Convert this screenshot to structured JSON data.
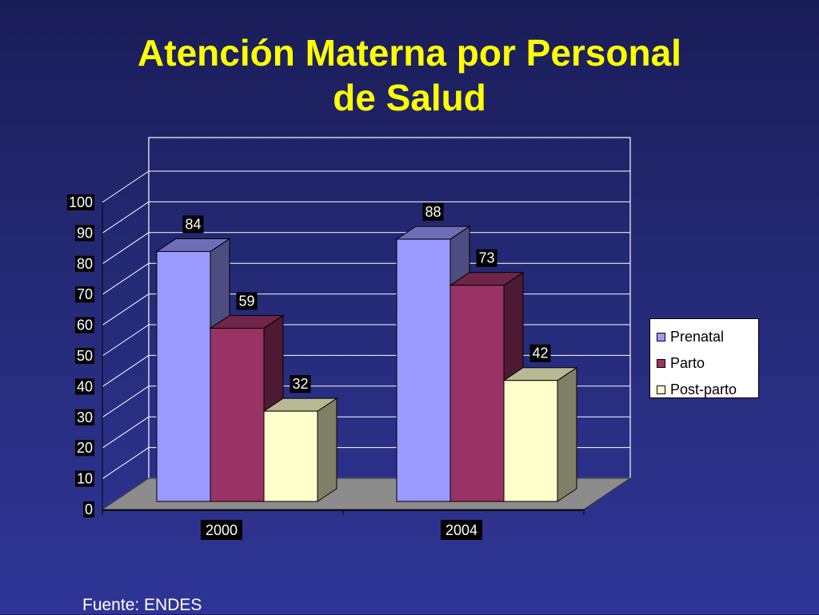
{
  "title_line1": "Atención Materna por Personal",
  "title_line2": "de Salud",
  "source": "Fuente: ENDES",
  "colors": {
    "background": "#252b78",
    "title": "#ffff00"
  },
  "chart_data": {
    "type": "bar",
    "categories": [
      "2000",
      "2004"
    ],
    "series": [
      {
        "name": "Prenatal",
        "values": [
          84,
          88
        ],
        "color": "#9999ff"
      },
      {
        "name": "Parto",
        "values": [
          59,
          73
        ],
        "color": "#993366"
      },
      {
        "name": "Post-parto",
        "values": [
          32,
          42
        ],
        "color": "#ffffcc"
      }
    ],
    "ylim": [
      0,
      100
    ],
    "yticks": [
      0,
      10,
      20,
      30,
      40,
      50,
      60,
      70,
      80,
      90,
      100
    ],
    "grid": true,
    "legend": "right",
    "three_d": true
  }
}
